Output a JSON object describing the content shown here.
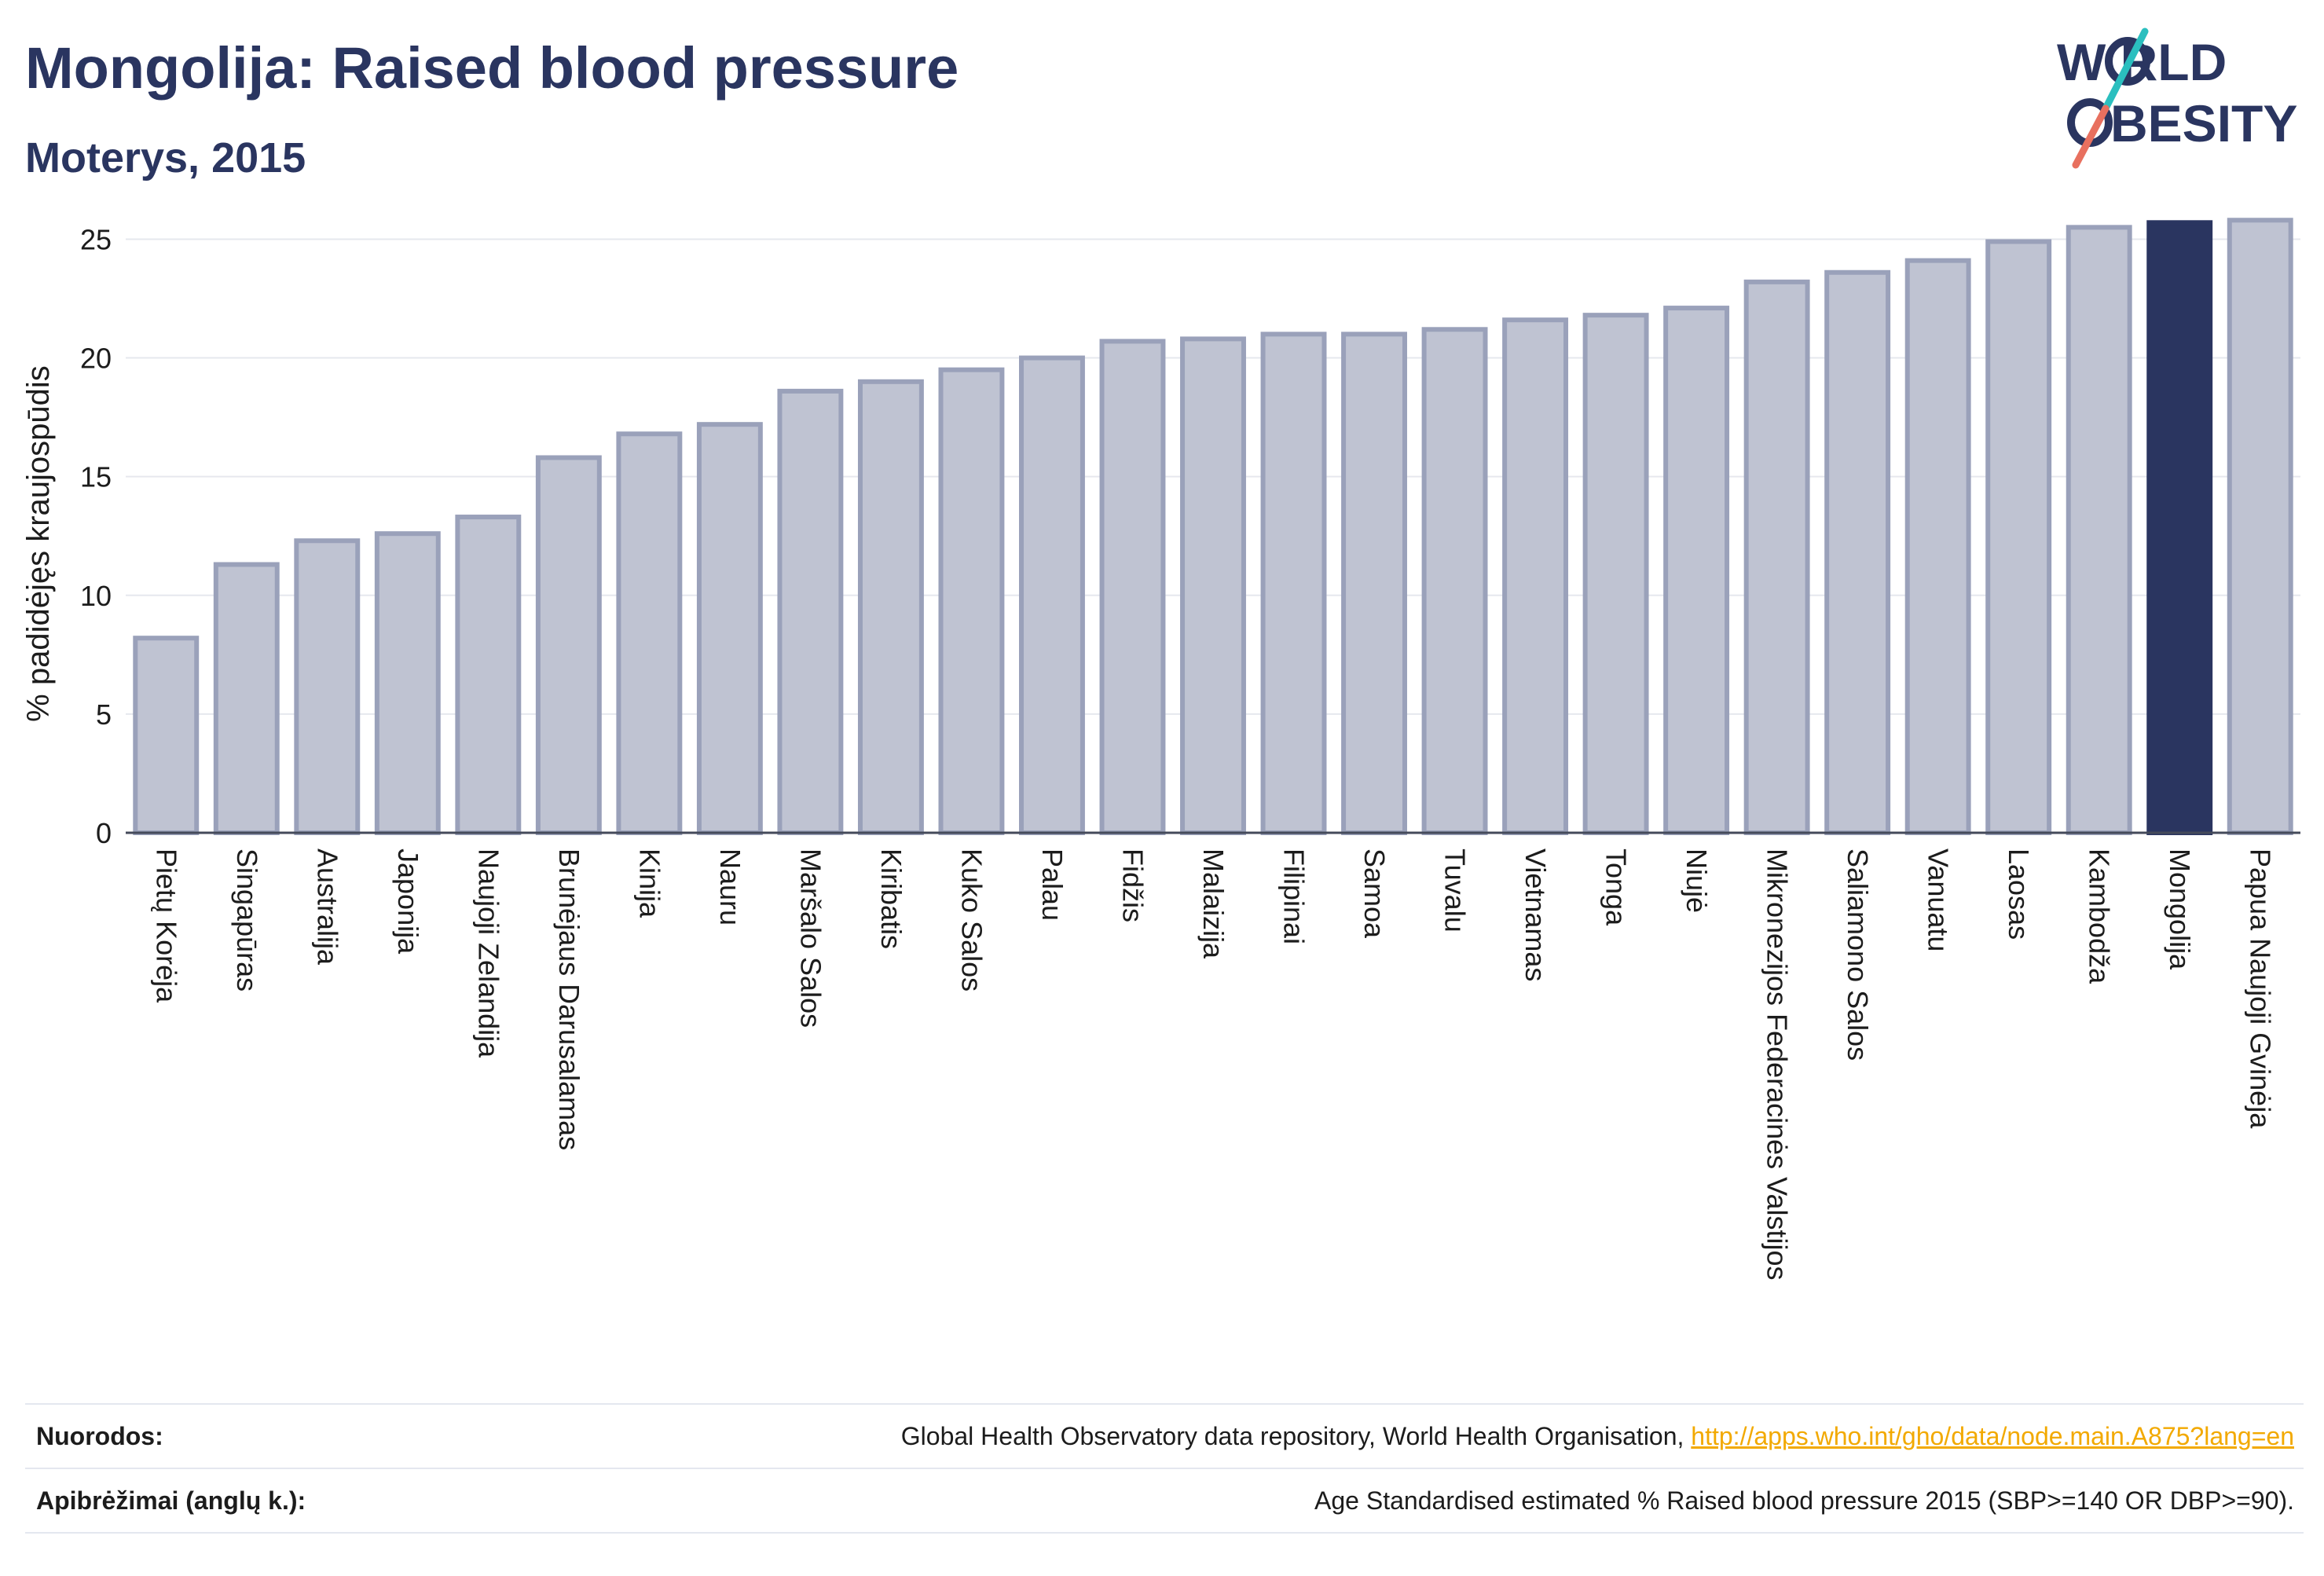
{
  "header": {
    "title": "Mongolija: Raised blood pressure",
    "subtitle": "Moterys, 2015"
  },
  "logo": {
    "line1": "W RLD",
    "line2": "BESITY",
    "text_color": "#2a3560",
    "slash_top_color": "#2bbfbf",
    "slash_bottom_color": "#e8705f"
  },
  "colors": {
    "bar_default": "#bfc3d2",
    "bar_default_stroke": "#9aa1ba",
    "bar_highlight": "#2a3560",
    "grid": "#e6e8ee",
    "axis_text": "#1c1c1c"
  },
  "chart_data": {
    "type": "bar",
    "ylabel": "% padidėjęs kraujospūdis",
    "xlabel": "",
    "ylim": [
      0,
      27
    ],
    "yticks": [
      0,
      5,
      10,
      15,
      20,
      25
    ],
    "highlight": "Mongolija",
    "categories": [
      "Pietų Korėja",
      "Singapūras",
      "Australija",
      "Japonija",
      "Naujoji Zelandija",
      "Brunėjaus Darusalamas",
      "Kinija",
      "Nauru",
      "Maršalo Salos",
      "Kiribatis",
      "Kuko Salos",
      "Palau",
      "Fidžis",
      "Malaizija",
      "Filipinai",
      "Samoa",
      "Tuvalu",
      "Vietnamas",
      "Tonga",
      "Niujė",
      "Mikronezijos Federacinės Valstijos",
      "Saliamono Salos",
      "Vanuatu",
      "Laosas",
      "Kambodža",
      "Mongolija",
      "Papua Naujoji Gvinėja"
    ],
    "values": [
      8.2,
      11.3,
      12.3,
      12.6,
      13.3,
      15.8,
      16.8,
      17.2,
      18.6,
      19.0,
      19.5,
      20.0,
      20.7,
      20.8,
      21.0,
      21.0,
      21.2,
      21.6,
      21.8,
      22.1,
      23.2,
      23.6,
      24.1,
      24.9,
      25.5,
      25.7,
      25.8
    ]
  },
  "footer": {
    "sources_label": "Nuorodos:",
    "sources_text": "Global Health Observatory data repository, World Health Organisation, ",
    "sources_link": "http://apps.who.int/gho/data/node.main.A875?lang=en",
    "definitions_label": "Apibrėžimai (anglų k.):",
    "definitions_text": "Age Standardised estimated % Raised blood pressure 2015 (SBP>=140 OR DBP>=90)."
  }
}
